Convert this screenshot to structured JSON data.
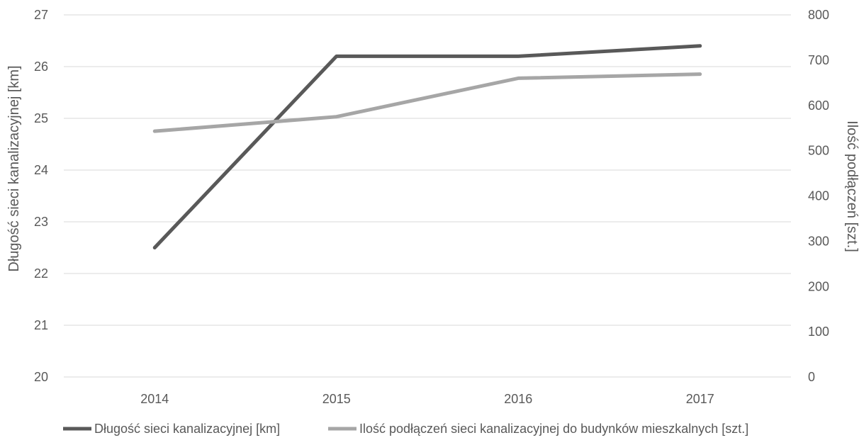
{
  "chart_data": {
    "type": "line",
    "title": "",
    "categories": [
      "2014",
      "2015",
      "2016",
      "2017"
    ],
    "y_left": {
      "label": "Długość sieci kanalizacyjnej [km]",
      "range": [
        20,
        27
      ],
      "ticks": [
        20,
        21,
        22,
        23,
        24,
        25,
        26,
        27
      ]
    },
    "y_right": {
      "label": "Ilość podłączeń [szt.]",
      "range": [
        0,
        800
      ],
      "ticks": [
        0,
        100,
        200,
        300,
        400,
        500,
        600,
        700,
        800
      ]
    },
    "series": [
      {
        "name": "Długość sieci kanalizacyjnej [km]",
        "axis": "left",
        "color": "#595959",
        "values": [
          22.5,
          26.2,
          26.2,
          26.4
        ]
      },
      {
        "name": "Ilość podłączeń sieci kanalizacyjnej do budynków mieszkalnych [szt.]",
        "axis": "right",
        "color": "#a6a6a6",
        "values": [
          543,
          575,
          660,
          669
        ]
      }
    ],
    "grid": true,
    "legend_position": "bottom"
  }
}
